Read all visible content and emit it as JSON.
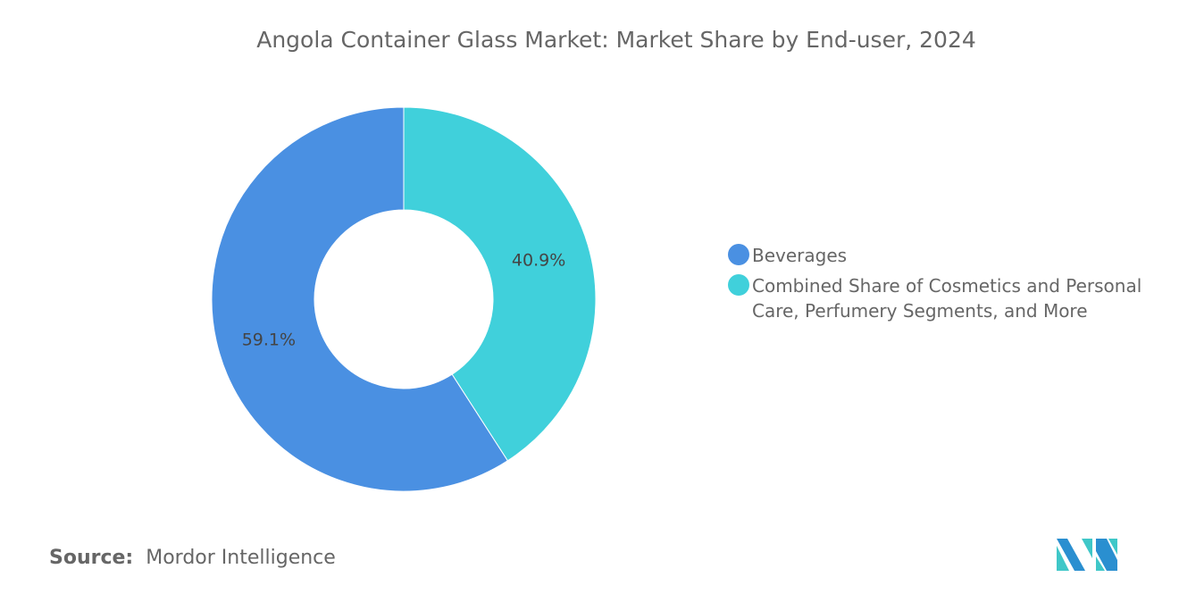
{
  "title": "Angola Container Glass Market: Market Share by End-user, 2024",
  "chart_data": {
    "type": "pie",
    "title": "Angola Container Glass Market: Market Share by End-user, 2024",
    "donut": true,
    "legend_position": "right",
    "slices": [
      {
        "label": "Combined Share of Cosmetics and Personal Care, Perfumery Segments, and More",
        "value": 40.9,
        "data_label": "40.9%",
        "color": "#40D0DB"
      },
      {
        "label": "Beverages",
        "value": 59.1,
        "data_label": "59.1%",
        "color": "#4A90E2"
      }
    ]
  },
  "legend": [
    {
      "label": "Beverages",
      "color": "#4A90E2"
    },
    {
      "label": "Combined Share of Cosmetics and Personal Care, Perfumery Segments, and More",
      "color": "#40D0DB"
    }
  ],
  "source": {
    "prefix": "Source:",
    "name": "Mordor Intelligence"
  },
  "logo": {
    "text": "Mordor Intelligence",
    "colors": [
      "#2A8FD0",
      "#3FC7C8"
    ]
  }
}
